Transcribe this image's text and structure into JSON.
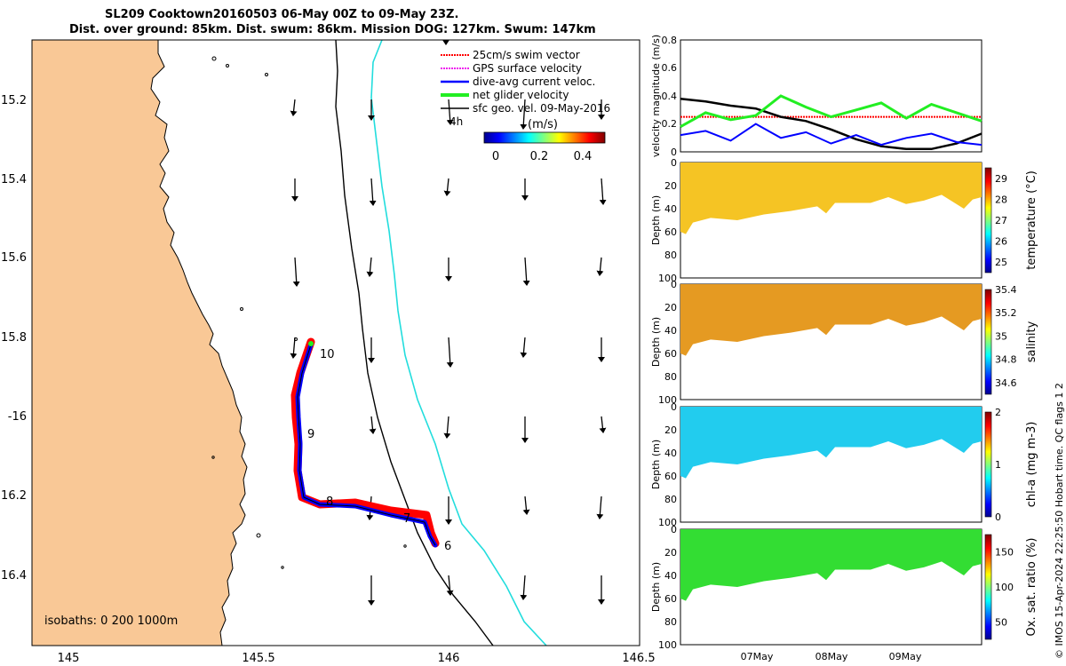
{
  "header": {
    "title_line1": "SL209 Cooktown20160503 06-May 00Z to 09-May 23Z.",
    "title_line2": "Dist. over ground: 85km. Dist. swum: 86km. Mission DOG: 127km. Swum: 147km"
  },
  "copyright": "© IMOS 15-Apr-2024 22:25:50 Hobart time. QC flags 1  2",
  "colors": {
    "land": "#F9C896",
    "track_red": "#FF0000",
    "track_blue": "#0000FF",
    "isobath_cyan": "#22DDDD",
    "net_green": "#22EE22",
    "swim_red": "#FF0000",
    "gps_magenta": "#EE22EE",
    "geo_black": "#222222"
  },
  "map": {
    "lon_ticks": [
      "145",
      "145.5",
      "146",
      "146.5"
    ],
    "lat_ticks": [
      "15.2",
      "15.4",
      "15.6",
      "15.8",
      "-16",
      "16.2",
      "16.4"
    ],
    "isobath_note": "isobaths: 0   200  1000m",
    "legend": [
      {
        "label": "25cm/s swim vector",
        "color": "#FF0000"
      },
      {
        "label": "GPS surface velocity",
        "color": "#EE22EE"
      },
      {
        "label": "dive-avg current veloc.",
        "color": "#0000FF"
      },
      {
        "label": "net glider velocity",
        "color": "#22EE22"
      },
      {
        "label": "sfc geo. vel. 09-May-2016",
        "color": "#000000"
      }
    ],
    "legend_extra": "4h",
    "colorbar_unit": "(m/s)",
    "colorbar_ticks": [
      "0",
      "0.2",
      "0.4"
    ],
    "colorbar_range": [
      -0.05,
      0.5
    ],
    "day_labels": [
      "10",
      "9",
      "8",
      "7",
      "6"
    ]
  },
  "chart_data": [
    {
      "type": "line",
      "ylabel": "velocity magnitude (m/s)",
      "ylim": [
        0,
        0.8
      ],
      "yticks": [
        "0",
        "0.2",
        "0.4",
        "0.6",
        "0.8"
      ],
      "series": [
        {
          "color": "#FF0000",
          "values": [
            0.25,
            0.25,
            0.25,
            0.25,
            0.25,
            0.25,
            0.25,
            0.25,
            0.25,
            0.25,
            0.25,
            0.25,
            0.25
          ]
        },
        {
          "color": "#000000",
          "values": [
            0.38,
            0.36,
            0.33,
            0.31,
            0.25,
            0.22,
            0.16,
            0.09,
            0.04,
            0.02,
            0.02,
            0.06,
            0.13
          ]
        },
        {
          "color": "#22EE22",
          "values": [
            0.18,
            0.28,
            0.23,
            0.26,
            0.4,
            0.32,
            0.25,
            0.3,
            0.35,
            0.24,
            0.34,
            0.28,
            0.22
          ]
        },
        {
          "color": "#0000FF",
          "values": [
            0.12,
            0.15,
            0.08,
            0.2,
            0.1,
            0.14,
            0.06,
            0.12,
            0.05,
            0.1,
            0.13,
            0.07,
            0.05
          ]
        }
      ]
    },
    {
      "type": "heatmap",
      "ylabel": "Depth (m)",
      "clabel": "temperature (°C)",
      "cticks": [
        "25",
        "26",
        "27",
        "28",
        "29"
      ],
      "yticks": [
        "0",
        "20",
        "40",
        "60",
        "80",
        "100"
      ],
      "value": 28.3
    },
    {
      "type": "heatmap",
      "ylabel": "Depth (m)",
      "clabel": "salinity",
      "cticks": [
        "34.6",
        "34.8",
        "35",
        "35.2",
        "35.4"
      ],
      "yticks": [
        "0",
        "20",
        "40",
        "60",
        "80",
        "100"
      ],
      "value": 35.15
    },
    {
      "type": "heatmap",
      "ylabel": "Depth (m)",
      "clabel": "chl-a (mg m-3)",
      "cticks": [
        "0",
        "1",
        "2"
      ],
      "yticks": [
        "0",
        "20",
        "40",
        "60",
        "80",
        "100"
      ],
      "value": 0.7
    },
    {
      "type": "heatmap",
      "ylabel": "Depth (m)",
      "clabel": "Ox. sat. ratio (%)",
      "cticks": [
        "50",
        "100",
        "150"
      ],
      "yticks": [
        "0",
        "20",
        "40",
        "60",
        "80",
        "100"
      ],
      "xticks": [
        "07May",
        "08May",
        "09May"
      ],
      "value": 105
    }
  ]
}
